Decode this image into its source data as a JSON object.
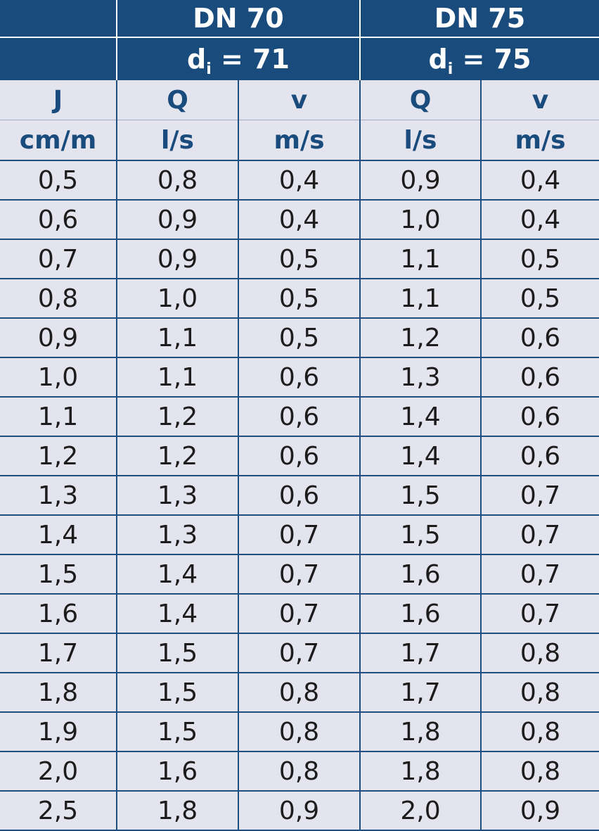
{
  "header": {
    "dn70": "DN 70",
    "di70_prefix": "d",
    "di70_sub": "i",
    "di70_value": " = 71",
    "dn75": "DN 75",
    "di75_prefix": "d",
    "di75_sub": "i",
    "di75_value": " = 75"
  },
  "columns": {
    "labels": [
      "J",
      "Q",
      "v",
      "Q",
      "v"
    ],
    "units": [
      "cm/m",
      "l/s",
      "m/s",
      "l/s",
      "m/s"
    ]
  },
  "rows": [
    [
      "0,5",
      "0,8",
      "0,4",
      "0,9",
      "0,4"
    ],
    [
      "0,6",
      "0,9",
      "0,4",
      "1,0",
      "0,4"
    ],
    [
      "0,7",
      "0,9",
      "0,5",
      "1,1",
      "0,5"
    ],
    [
      "0,8",
      "1,0",
      "0,5",
      "1,1",
      "0,5"
    ],
    [
      "0,9",
      "1,1",
      "0,5",
      "1,2",
      "0,6"
    ],
    [
      "1,0",
      "1,1",
      "0,6",
      "1,3",
      "0,6"
    ],
    [
      "1,1",
      "1,2",
      "0,6",
      "1,4",
      "0,6"
    ],
    [
      "1,2",
      "1,2",
      "0,6",
      "1,4",
      "0,6"
    ],
    [
      "1,3",
      "1,3",
      "0,6",
      "1,5",
      "0,7"
    ],
    [
      "1,4",
      "1,3",
      "0,7",
      "1,5",
      "0,7"
    ],
    [
      "1,5",
      "1,4",
      "0,7",
      "1,6",
      "0,7"
    ],
    [
      "1,6",
      "1,4",
      "0,7",
      "1,6",
      "0,7"
    ],
    [
      "1,7",
      "1,5",
      "0,7",
      "1,7",
      "0,8"
    ],
    [
      "1,8",
      "1,5",
      "0,8",
      "1,7",
      "0,8"
    ],
    [
      "1,9",
      "1,5",
      "0,8",
      "1,8",
      "0,8"
    ],
    [
      "2,0",
      "1,6",
      "0,8",
      "1,8",
      "0,8"
    ],
    [
      "2,5",
      "1,8",
      "0,9",
      "2,0",
      "0,9"
    ]
  ]
}
